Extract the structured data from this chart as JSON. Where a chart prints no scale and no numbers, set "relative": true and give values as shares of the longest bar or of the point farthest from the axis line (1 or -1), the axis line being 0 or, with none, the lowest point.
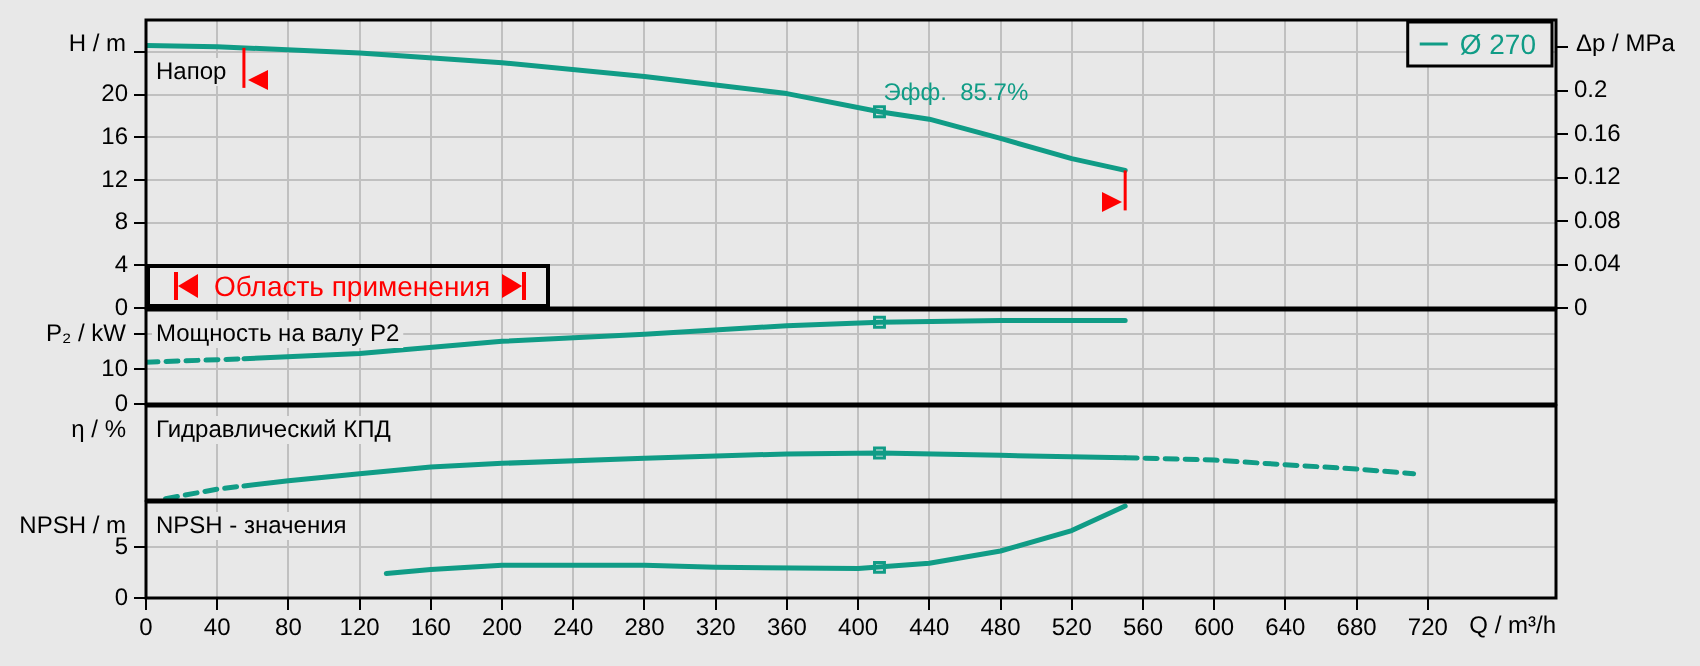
{
  "chart_data": [
    {
      "type": "line",
      "title": "Напор",
      "ylabel": "H / m",
      "y2label": "Δp / MPa",
      "annotations": [
        {
          "text": "Эфф.  85.7%",
          "x": 412,
          "y": 18.4
        },
        "Область применения"
      ],
      "xlim": [
        0,
        792
      ],
      "xticks": [
        0,
        40,
        80,
        120,
        160,
        200,
        240,
        280,
        320,
        360,
        400,
        440,
        480,
        520,
        560,
        600,
        640,
        680,
        720
      ],
      "ylim": [
        0,
        27
      ],
      "yticks": [
        0,
        4,
        8,
        12,
        16,
        20,
        {
          "value": 24,
          "label": null
        }
      ],
      "y2lim": [
        0,
        0.265
      ],
      "y2ticks": [
        0,
        0.04,
        0.08,
        0.12,
        0.16,
        0.2,
        {
          "value": 0.24,
          "label": null
        }
      ],
      "grid": true,
      "legend": "top right",
      "tick_labels": "y",
      "ref_lines": [
        {
          "axis": "x",
          "value": 55,
          "color": "#ff0000"
        },
        {
          "axis": "x",
          "value": 550,
          "color": "#ff0000"
        }
      ],
      "series": [
        {
          "name": "Ø 270",
          "color": "#109c86",
          "x": [
            0,
            40,
            120,
            200,
            280,
            360,
            412,
            440,
            480,
            520,
            550
          ],
          "values": [
            24.6,
            24.5,
            23.9,
            23.0,
            21.7,
            20.1,
            18.4,
            17.7,
            15.9,
            14.0,
            12.9
          ]
        },
        {
          "type": "scatter",
          "color": "#109c86",
          "marker": "square",
          "x": [
            412
          ],
          "values": [
            18.4
          ]
        }
      ]
    },
    {
      "type": "line",
      "title": "Мощность на валу P2",
      "ylabel": "P₂ / kW",
      "xlim": [
        0,
        792
      ],
      "xticks": [
        0,
        40,
        80,
        120,
        160,
        200,
        240,
        280,
        320,
        360,
        400,
        440,
        480,
        520,
        560,
        600,
        640,
        680,
        720
      ],
      "ylim": [
        0,
        27
      ],
      "yticks": [
        0,
        10,
        {
          "value": 20,
          "label": null
        }
      ],
      "grid": true,
      "tick_labels": "y",
      "series": [
        {
          "color": "#109c86",
          "line_style": "dashed",
          "x": [
            0,
            55
          ],
          "values": [
            12,
            13
          ]
        },
        {
          "color": "#109c86",
          "x": [
            55,
            120,
            200,
            280,
            360,
            412,
            480,
            550
          ],
          "values": [
            13,
            14.5,
            18,
            20,
            22.5,
            23.5,
            24,
            24
          ]
        },
        {
          "type": "scatter",
          "color": "#109c86",
          "marker": "square",
          "x": [
            412
          ],
          "values": [
            23.5
          ]
        }
      ]
    },
    {
      "type": "line",
      "title": "Гидравлический КПД",
      "ylabel": "η / %",
      "relative": true,
      "xlim": [
        0,
        792
      ],
      "xticks": [
        0,
        40,
        80,
        120,
        160,
        200,
        240,
        280,
        320,
        360,
        400,
        440,
        480,
        520,
        560,
        600,
        640,
        680,
        720
      ],
      "grid": "x",
      "tick_labels": false,
      "series": [
        {
          "color": "#109c86",
          "line_style": "dashed",
          "x": [
            11,
            40,
            55
          ],
          "values": [
            0.03,
            0.23,
            0.3
          ]
        },
        {
          "color": "#109c86",
          "x": [
            55,
            80,
            120,
            160,
            200,
            280,
            360,
            412,
            480,
            550
          ],
          "values": [
            0.3,
            0.41,
            0.56,
            0.7,
            0.78,
            0.89,
            0.98,
            1,
            0.95,
            0.9
          ]
        },
        {
          "color": "#109c86",
          "line_style": "dashed",
          "x": [
            550,
            600,
            640,
            680,
            712
          ],
          "values": [
            0.9,
            0.85,
            0.75,
            0.66,
            0.56
          ]
        },
        {
          "type": "scatter",
          "color": "#109c86",
          "marker": "square",
          "x": [
            412
          ],
          "values": [
            1
          ]
        }
      ]
    },
    {
      "type": "line",
      "title": "NPSH - значения",
      "ylabel": "NPSH / m",
      "xlabel": "Q / m³/h",
      "xlim": [
        0,
        792
      ],
      "xticks": [
        0,
        40,
        80,
        120,
        160,
        200,
        240,
        280,
        320,
        360,
        400,
        440,
        480,
        520,
        560,
        600,
        640,
        680,
        720
      ],
      "ylim": [
        0,
        9.4
      ],
      "yticks": [
        0,
        5
      ],
      "grid": true,
      "series": [
        {
          "color": "#109c86",
          "x": [
            135,
            160,
            200,
            280,
            320,
            400,
            440,
            480,
            520,
            550
          ],
          "values": [
            2.4,
            2.8,
            3.2,
            3.2,
            3.0,
            2.9,
            3.4,
            4.6,
            6.6,
            9.0
          ]
        },
        {
          "type": "scatter",
          "color": "#109c86",
          "marker": "square",
          "x": [
            412
          ],
          "values": [
            3.0
          ]
        }
      ]
    }
  ]
}
